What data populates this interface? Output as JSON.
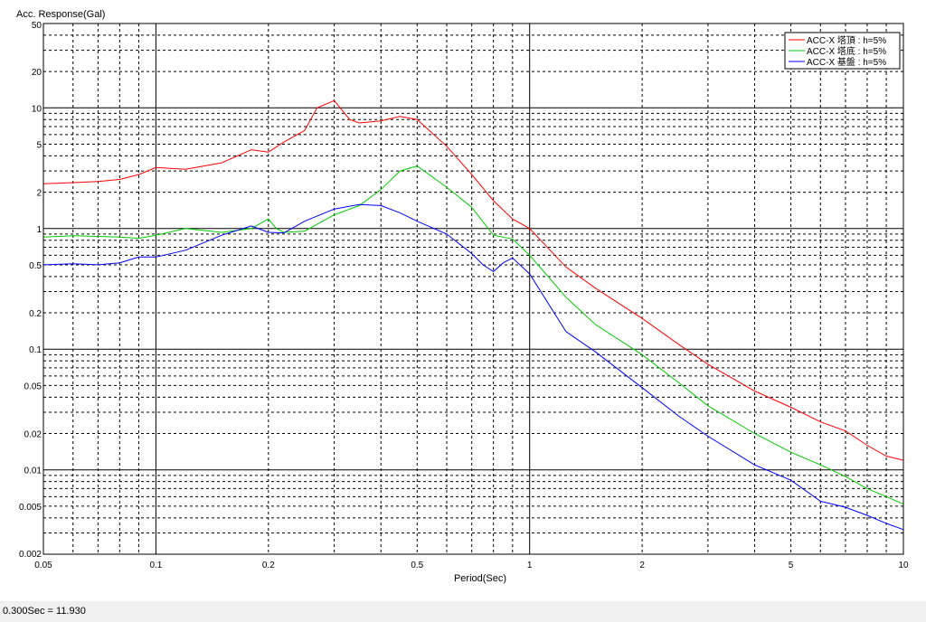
{
  "chart_data": {
    "type": "line",
    "ylabel": "Acc. Response(Gal)",
    "xlabel": "Period(Sec)",
    "xscale": "log",
    "yscale": "log",
    "xlim": [
      0.05,
      10
    ],
    "ylim": [
      0.002,
      50
    ],
    "grid": true,
    "legend_position": "top-right",
    "x_ticks": [
      0.05,
      0.1,
      0.2,
      0.5,
      1,
      2,
      5,
      10
    ],
    "x_tick_labels": [
      "0.05",
      "0.1",
      "0.2",
      "0.5",
      "1",
      "2",
      "5",
      "10"
    ],
    "y_ticks": [
      0.002,
      0.005,
      0.01,
      0.02,
      0.05,
      0.1,
      0.2,
      0.5,
      1,
      2,
      5,
      10,
      20,
      50
    ],
    "y_tick_labels": [
      "0.002",
      "0.005",
      "0.01",
      "0.02",
      "0.05",
      "0.1",
      "0.2",
      "0.5",
      "1",
      "2",
      "5",
      "10",
      "20",
      "50"
    ],
    "series": [
      {
        "name": "ACC-X 塔頂 : h=5%",
        "color": "#ff0000",
        "x": [
          0.05,
          0.06,
          0.07,
          0.08,
          0.09,
          0.1,
          0.12,
          0.15,
          0.18,
          0.2,
          0.22,
          0.25,
          0.27,
          0.3,
          0.33,
          0.35,
          0.4,
          0.45,
          0.5,
          0.6,
          0.7,
          0.8,
          0.9,
          1.0,
          1.25,
          1.5,
          2.0,
          2.5,
          3.0,
          4.0,
          5.0,
          6.0,
          7.0,
          8.0,
          9.0,
          10.0
        ],
        "y": [
          2.35,
          2.4,
          2.45,
          2.55,
          2.8,
          3.2,
          3.1,
          3.5,
          4.5,
          4.3,
          5.2,
          6.5,
          10.0,
          11.5,
          8.0,
          7.5,
          7.8,
          8.5,
          8.0,
          4.8,
          2.8,
          1.7,
          1.2,
          1.0,
          0.48,
          0.32,
          0.18,
          0.11,
          0.075,
          0.045,
          0.033,
          0.025,
          0.021,
          0.016,
          0.013,
          0.012
        ]
      },
      {
        "name": "ACC-X 塔底 : h=5%",
        "color": "#00cc00",
        "x": [
          0.05,
          0.06,
          0.07,
          0.08,
          0.09,
          0.1,
          0.12,
          0.15,
          0.18,
          0.2,
          0.21,
          0.22,
          0.25,
          0.3,
          0.35,
          0.4,
          0.45,
          0.5,
          0.6,
          0.7,
          0.8,
          0.9,
          1.0,
          1.25,
          1.5,
          2.0,
          2.5,
          3.0,
          4.0,
          5.0,
          6.0,
          7.0,
          8.0,
          9.0,
          10.0
        ],
        "y": [
          0.85,
          0.87,
          0.86,
          0.85,
          0.83,
          0.88,
          1.0,
          0.93,
          1.0,
          1.2,
          1.0,
          0.93,
          0.95,
          1.3,
          1.55,
          2.1,
          3.0,
          3.3,
          2.2,
          1.5,
          0.88,
          0.82,
          0.6,
          0.27,
          0.16,
          0.09,
          0.053,
          0.034,
          0.02,
          0.014,
          0.011,
          0.0088,
          0.007,
          0.006,
          0.0052
        ]
      },
      {
        "name": "ACC-X 基盤 : h=5%",
        "color": "#0000ff",
        "x": [
          0.05,
          0.06,
          0.07,
          0.08,
          0.09,
          0.1,
          0.12,
          0.15,
          0.18,
          0.2,
          0.22,
          0.25,
          0.3,
          0.35,
          0.4,
          0.45,
          0.5,
          0.6,
          0.7,
          0.75,
          0.8,
          0.85,
          0.9,
          1.0,
          1.25,
          1.5,
          2.0,
          2.5,
          3.0,
          4.0,
          5.0,
          6.0,
          7.0,
          8.0,
          9.0,
          10.0
        ],
        "y": [
          0.5,
          0.51,
          0.5,
          0.52,
          0.58,
          0.58,
          0.66,
          0.88,
          1.05,
          0.93,
          0.92,
          1.15,
          1.45,
          1.58,
          1.55,
          1.35,
          1.15,
          0.9,
          0.62,
          0.5,
          0.44,
          0.52,
          0.57,
          0.42,
          0.14,
          0.095,
          0.048,
          0.028,
          0.019,
          0.011,
          0.0082,
          0.0055,
          0.0049,
          0.0042,
          0.0036,
          0.0032
        ]
      }
    ]
  },
  "status_bar": {
    "text": "0.300Sec = 11.930"
  }
}
